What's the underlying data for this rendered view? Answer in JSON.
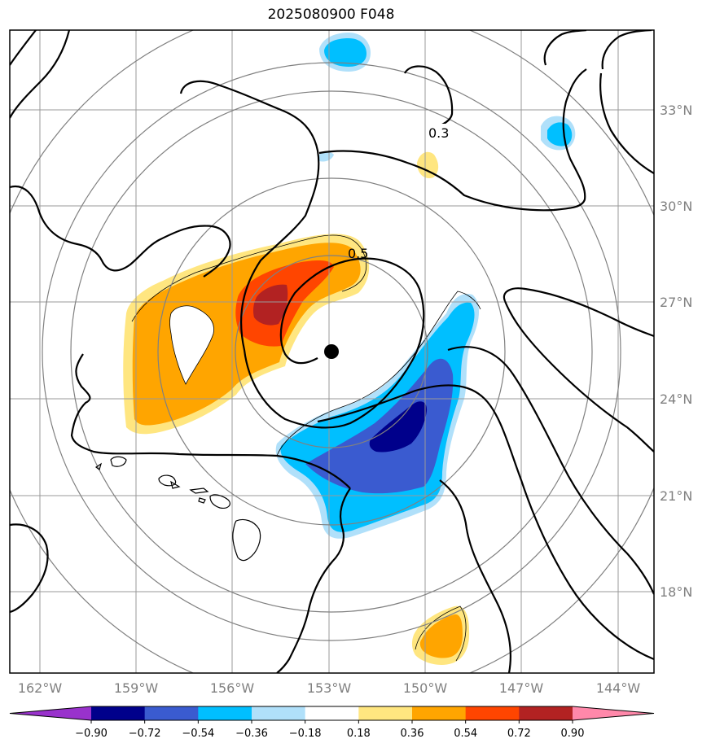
{
  "title": "2025080900 F048",
  "map": {
    "lon_ticks": [
      "162°W",
      "159°W",
      "156°W",
      "153°W",
      "150°W",
      "147°W",
      "144°W"
    ],
    "lat_ticks": [
      "33°N",
      "30°N",
      "27°N",
      "24°N",
      "21°N",
      "18°N"
    ],
    "contour_labels": [
      "0.3",
      "0.5"
    ],
    "center_marker": "storm-center-dot",
    "colors": {
      "frame": "#000000",
      "grid": "#999999",
      "range_rings": "#808080",
      "contour": "#000000"
    }
  },
  "colorbar": {
    "levels": [
      "−0.90",
      "−0.72",
      "−0.54",
      "−0.36",
      "−0.18",
      "0.18",
      "0.36",
      "0.54",
      "0.72",
      "0.90"
    ],
    "colors": [
      "#9932cc",
      "#00008b",
      "#3a5bd0",
      "#00bfff",
      "#b0e0fa",
      "#ffffff",
      "#ffe680",
      "#ffa500",
      "#ff4500",
      "#b22222",
      "#ff88aa"
    ]
  }
}
